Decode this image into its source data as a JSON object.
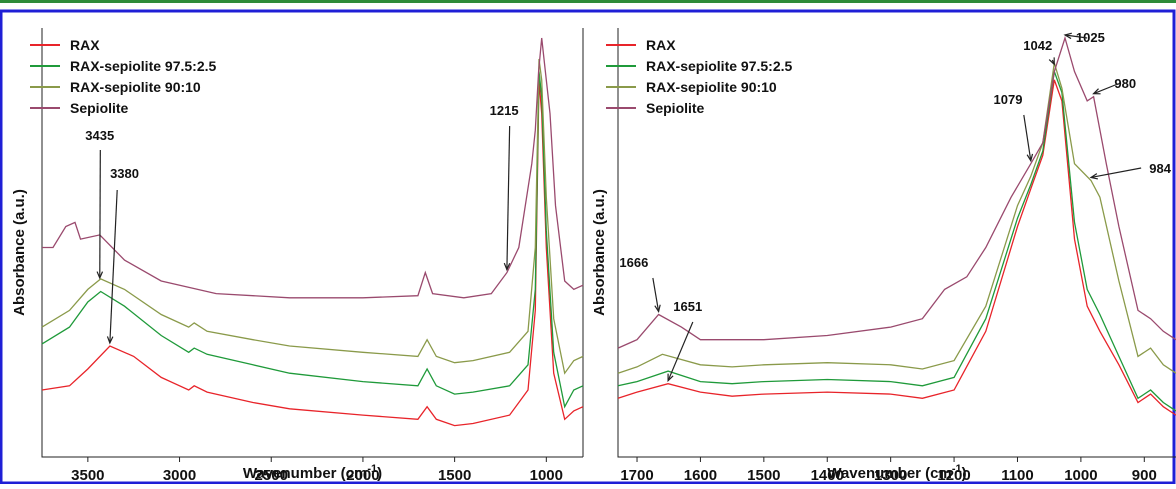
{
  "colors": {
    "top_bar": "#2e8b3a",
    "border": "#1f1fd6",
    "RAX": "#e8242a",
    "RAX-sepiolite 97.5:2.5": "#1f9a3a",
    "RAX-sepiolite 90:10": "#8a9a4a",
    "Sepiolite": "#9a4a6e"
  },
  "chart_data": [
    {
      "type": "line",
      "title": "",
      "xlabel": "Wavenumber (cm",
      "xlabel_sup": "-1",
      "xlabel_tail": ")",
      "ylabel": "Absorbance (a.u.)",
      "xlim": [
        3750,
        800
      ],
      "ylim": [
        0,
        1
      ],
      "x_reversed": true,
      "xticks": [
        3500,
        3000,
        2500,
        2000,
        1500,
        1000
      ],
      "grid": false,
      "legend_position": "top-left",
      "series": [
        {
          "name": "RAX",
          "color_key": "RAX",
          "points": [
            [
              3750,
              0.16
            ],
            [
              3600,
              0.17
            ],
            [
              3500,
              0.21
            ],
            [
              3380,
              0.265
            ],
            [
              3250,
              0.24
            ],
            [
              3100,
              0.19
            ],
            [
              2950,
              0.16
            ],
            [
              2920,
              0.17
            ],
            [
              2850,
              0.155
            ],
            [
              2600,
              0.13
            ],
            [
              2400,
              0.115
            ],
            [
              2000,
              0.1
            ],
            [
              1700,
              0.09
            ],
            [
              1650,
              0.12
            ],
            [
              1600,
              0.09
            ],
            [
              1500,
              0.075
            ],
            [
              1400,
              0.08
            ],
            [
              1200,
              0.1
            ],
            [
              1100,
              0.16
            ],
            [
              1060,
              0.35
            ],
            [
              1040,
              0.9
            ],
            [
              1025,
              0.82
            ],
            [
              1000,
              0.5
            ],
            [
              960,
              0.2
            ],
            [
              900,
              0.09
            ],
            [
              850,
              0.11
            ],
            [
              800,
              0.12
            ]
          ]
        },
        {
          "name": "RAX-sepiolite 97.5:2.5",
          "color_key": "RAX-sepiolite 97.5:2.5",
          "points": [
            [
              3750,
              0.27
            ],
            [
              3600,
              0.31
            ],
            [
              3500,
              0.37
            ],
            [
              3430,
              0.395
            ],
            [
              3300,
              0.36
            ],
            [
              3100,
              0.29
            ],
            [
              2950,
              0.25
            ],
            [
              2920,
              0.26
            ],
            [
              2850,
              0.245
            ],
            [
              2600,
              0.22
            ],
            [
              2400,
              0.2
            ],
            [
              2000,
              0.18
            ],
            [
              1700,
              0.17
            ],
            [
              1650,
              0.21
            ],
            [
              1600,
              0.17
            ],
            [
              1500,
              0.15
            ],
            [
              1400,
              0.155
            ],
            [
              1200,
              0.17
            ],
            [
              1100,
              0.22
            ],
            [
              1060,
              0.4
            ],
            [
              1040,
              0.92
            ],
            [
              1025,
              0.86
            ],
            [
              1000,
              0.54
            ],
            [
              960,
              0.25
            ],
            [
              900,
              0.12
            ],
            [
              850,
              0.16
            ],
            [
              800,
              0.17
            ]
          ]
        },
        {
          "name": "RAX-sepiolite 90:10",
          "color_key": "RAX-sepiolite 90:10",
          "points": [
            [
              3750,
              0.31
            ],
            [
              3600,
              0.35
            ],
            [
              3500,
              0.4
            ],
            [
              3430,
              0.425
            ],
            [
              3300,
              0.4
            ],
            [
              3100,
              0.34
            ],
            [
              2950,
              0.31
            ],
            [
              2920,
              0.32
            ],
            [
              2850,
              0.3
            ],
            [
              2600,
              0.28
            ],
            [
              2400,
              0.265
            ],
            [
              2000,
              0.25
            ],
            [
              1700,
              0.24
            ],
            [
              1650,
              0.28
            ],
            [
              1600,
              0.24
            ],
            [
              1500,
              0.225
            ],
            [
              1400,
              0.23
            ],
            [
              1200,
              0.25
            ],
            [
              1100,
              0.3
            ],
            [
              1060,
              0.5
            ],
            [
              1040,
              0.95
            ],
            [
              1025,
              0.9
            ],
            [
              1000,
              0.62
            ],
            [
              960,
              0.33
            ],
            [
              900,
              0.2
            ],
            [
              850,
              0.23
            ],
            [
              800,
              0.24
            ]
          ]
        },
        {
          "name": "Sepiolite",
          "color_key": "Sepiolite",
          "points": [
            [
              3750,
              0.5
            ],
            [
              3690,
              0.5
            ],
            [
              3620,
              0.55
            ],
            [
              3570,
              0.56
            ],
            [
              3540,
              0.52
            ],
            [
              3435,
              0.53
            ],
            [
              3300,
              0.47
            ],
            [
              3100,
              0.42
            ],
            [
              2800,
              0.39
            ],
            [
              2400,
              0.38
            ],
            [
              2000,
              0.38
            ],
            [
              1700,
              0.385
            ],
            [
              1660,
              0.44
            ],
            [
              1620,
              0.39
            ],
            [
              1450,
              0.38
            ],
            [
              1300,
              0.39
            ],
            [
              1215,
              0.44
            ],
            [
              1150,
              0.5
            ],
            [
              1079,
              0.7
            ],
            [
              1060,
              0.78
            ],
            [
              1042,
              0.92
            ],
            [
              1025,
              1.0
            ],
            [
              1000,
              0.9
            ],
            [
              980,
              0.82
            ],
            [
              950,
              0.6
            ],
            [
              900,
              0.42
            ],
            [
              850,
              0.4
            ],
            [
              800,
              0.41
            ]
          ]
        }
      ],
      "annotations": [
        {
          "text": "3435",
          "x": 3435,
          "y": 0.42
        },
        {
          "text": "3380",
          "x": 3380,
          "y": 0.265
        },
        {
          "text": "1215",
          "x": 1215,
          "y": 0.44
        }
      ]
    },
    {
      "type": "line",
      "title": "",
      "xlabel": "Wavenumber (cm",
      "xlabel_sup": "-1",
      "xlabel_tail": ")",
      "ylabel": "Absorbance (a.u.)",
      "xlim": [
        1730,
        850
      ],
      "ylim": [
        0,
        1
      ],
      "x_reversed": true,
      "xticks": [
        1700,
        1600,
        1500,
        1400,
        1300,
        1200,
        1100,
        1000,
        900
      ],
      "grid": false,
      "legend_position": "top-left",
      "series": [
        {
          "name": "RAX",
          "color_key": "RAX",
          "points": [
            [
              1730,
              0.14
            ],
            [
              1700,
              0.155
            ],
            [
              1651,
              0.175
            ],
            [
              1600,
              0.155
            ],
            [
              1550,
              0.145
            ],
            [
              1500,
              0.15
            ],
            [
              1400,
              0.155
            ],
            [
              1300,
              0.15
            ],
            [
              1250,
              0.14
            ],
            [
              1200,
              0.16
            ],
            [
              1150,
              0.3
            ],
            [
              1100,
              0.55
            ],
            [
              1079,
              0.64
            ],
            [
              1060,
              0.72
            ],
            [
              1042,
              0.9
            ],
            [
              1030,
              0.85
            ],
            [
              1010,
              0.52
            ],
            [
              990,
              0.36
            ],
            [
              970,
              0.3
            ],
            [
              940,
              0.22
            ],
            [
              910,
              0.13
            ],
            [
              890,
              0.15
            ],
            [
              870,
              0.12
            ],
            [
              850,
              0.1
            ]
          ]
        },
        {
          "name": "RAX-sepiolite 97.5:2.5",
          "color_key": "RAX-sepiolite 97.5:2.5",
          "points": [
            [
              1730,
              0.17
            ],
            [
              1700,
              0.18
            ],
            [
              1651,
              0.205
            ],
            [
              1600,
              0.18
            ],
            [
              1550,
              0.175
            ],
            [
              1500,
              0.18
            ],
            [
              1400,
              0.185
            ],
            [
              1300,
              0.18
            ],
            [
              1250,
              0.17
            ],
            [
              1200,
              0.19
            ],
            [
              1150,
              0.33
            ],
            [
              1100,
              0.57
            ],
            [
              1079,
              0.65
            ],
            [
              1060,
              0.73
            ],
            [
              1042,
              0.92
            ],
            [
              1030,
              0.87
            ],
            [
              1010,
              0.56
            ],
            [
              990,
              0.4
            ],
            [
              970,
              0.34
            ],
            [
              940,
              0.24
            ],
            [
              910,
              0.14
            ],
            [
              890,
              0.16
            ],
            [
              870,
              0.13
            ],
            [
              850,
              0.11
            ]
          ]
        },
        {
          "name": "RAX-sepiolite 90:10",
          "color_key": "RAX-sepiolite 90:10",
          "points": [
            [
              1730,
              0.2
            ],
            [
              1700,
              0.215
            ],
            [
              1660,
              0.245
            ],
            [
              1600,
              0.22
            ],
            [
              1550,
              0.215
            ],
            [
              1500,
              0.22
            ],
            [
              1400,
              0.225
            ],
            [
              1300,
              0.22
            ],
            [
              1250,
              0.21
            ],
            [
              1200,
              0.23
            ],
            [
              1150,
              0.36
            ],
            [
              1100,
              0.6
            ],
            [
              1079,
              0.67
            ],
            [
              1060,
              0.75
            ],
            [
              1042,
              0.94
            ],
            [
              1030,
              0.88
            ],
            [
              1010,
              0.7
            ],
            [
              984,
              0.66
            ],
            [
              970,
              0.62
            ],
            [
              940,
              0.42
            ],
            [
              910,
              0.24
            ],
            [
              890,
              0.26
            ],
            [
              870,
              0.22
            ],
            [
              850,
              0.2
            ]
          ]
        },
        {
          "name": "Sepiolite",
          "color_key": "Sepiolite",
          "points": [
            [
              1730,
              0.26
            ],
            [
              1700,
              0.28
            ],
            [
              1666,
              0.34
            ],
            [
              1630,
              0.31
            ],
            [
              1600,
              0.28
            ],
            [
              1500,
              0.28
            ],
            [
              1400,
              0.29
            ],
            [
              1300,
              0.31
            ],
            [
              1250,
              0.33
            ],
            [
              1215,
              0.4
            ],
            [
              1180,
              0.43
            ],
            [
              1150,
              0.5
            ],
            [
              1110,
              0.62
            ],
            [
              1079,
              0.7
            ],
            [
              1060,
              0.75
            ],
            [
              1042,
              0.92
            ],
            [
              1025,
              1.0
            ],
            [
              1010,
              0.92
            ],
            [
              990,
              0.85
            ],
            [
              980,
              0.86
            ],
            [
              960,
              0.7
            ],
            [
              940,
              0.55
            ],
            [
              910,
              0.35
            ],
            [
              890,
              0.33
            ],
            [
              870,
              0.3
            ],
            [
              850,
              0.28
            ]
          ]
        }
      ],
      "annotations": [
        {
          "text": "1666",
          "x": 1666,
          "y": 0.34
        },
        {
          "text": "1651",
          "x": 1651,
          "y": 0.175
        },
        {
          "text": "1079",
          "x": 1079,
          "y": 0.7
        },
        {
          "text": "1042",
          "x": 1042,
          "y": 0.93
        },
        {
          "text": "1025",
          "x": 1025,
          "y": 1.0
        },
        {
          "text": "980",
          "x": 980,
          "y": 0.86
        },
        {
          "text": "984",
          "x": 984,
          "y": 0.66
        }
      ]
    }
  ]
}
